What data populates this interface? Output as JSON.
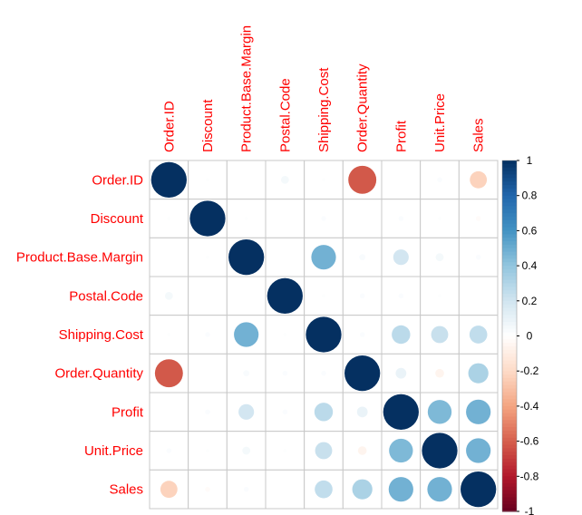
{
  "chart_data": {
    "type": "heatmap",
    "subtype": "correlation-circle-plot",
    "variables": [
      "Order.ID",
      "Discount",
      "Product.Base.Margin",
      "Postal.Code",
      "Shipping.Cost",
      "Order.Quantity",
      "Profit",
      "Unit.Price",
      "Sales"
    ],
    "matrix": [
      [
        1,
        0.01,
        0.0,
        0.05,
        0.01,
        -0.62,
        0.0,
        0.02,
        -0.23
      ],
      [
        0.01,
        1,
        0.01,
        0.0,
        0.02,
        0.0,
        0.02,
        0.01,
        -0.02
      ],
      [
        0.0,
        0.01,
        1,
        0.0,
        0.48,
        0.03,
        0.19,
        0.05,
        0.02
      ],
      [
        0.05,
        0.0,
        0.0,
        1,
        0.01,
        0.02,
        0.02,
        0.01,
        0.0
      ],
      [
        0.01,
        0.02,
        0.48,
        0.01,
        1,
        0.02,
        0.27,
        0.23,
        0.25
      ],
      [
        -0.62,
        0.0,
        0.03,
        0.02,
        0.02,
        1,
        0.09,
        -0.06,
        0.32
      ],
      [
        0.0,
        0.02,
        0.19,
        0.02,
        0.27,
        0.09,
        1,
        0.45,
        0.48
      ],
      [
        0.02,
        0.01,
        0.05,
        0.01,
        0.23,
        -0.06,
        0.45,
        1,
        0.48
      ],
      [
        -0.23,
        -0.02,
        0.02,
        0.0,
        0.25,
        0.32,
        0.48,
        0.48,
        1
      ]
    ],
    "colorbar": {
      "range": [
        -1,
        1
      ],
      "ticks": [
        "1",
        "0.8",
        "0.6",
        "0.4",
        "0.2",
        "0",
        "-0.2",
        "-0.4",
        "-0.6",
        "-0.8",
        "-1"
      ]
    },
    "label_color": "#FF0000",
    "grid": true
  }
}
